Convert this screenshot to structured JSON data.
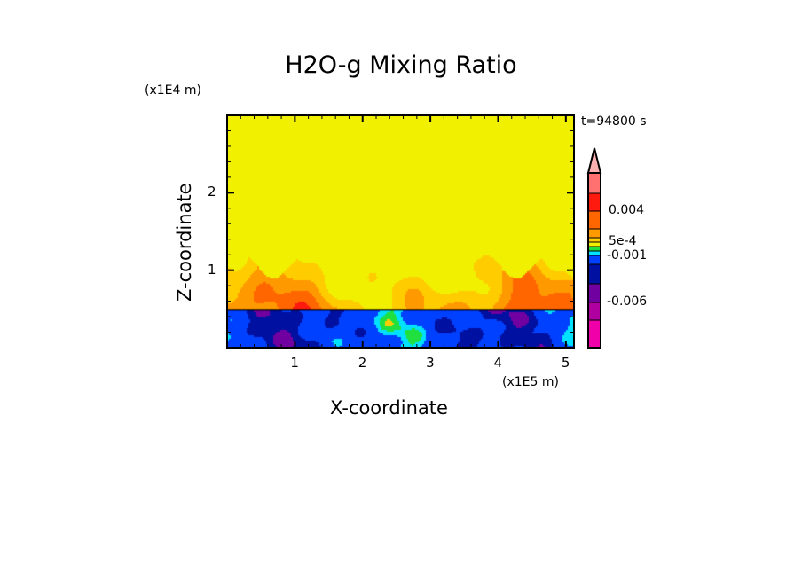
{
  "chart_data": {
    "type": "heatmap",
    "title": "H2O-g Mixing Ratio",
    "xlabel": "X-coordinate",
    "ylabel": "Z-coordinate",
    "x_unit": "(x1E5 m)",
    "y_unit": "(x1E4 m)",
    "annotation": "t=94800 s",
    "xlim": [
      0,
      5.12
    ],
    "ylim": [
      0,
      3.0
    ],
    "x_ticks": [
      "1",
      "2",
      "3",
      "4",
      "5"
    ],
    "x_tick_values": [
      1,
      2,
      3,
      4,
      5
    ],
    "y_ticks": [
      "1",
      "2"
    ],
    "y_tick_values": [
      1,
      2
    ],
    "interface_height": 0.5,
    "plume_top": 1.05,
    "colorbar": {
      "labels": [
        "0.004",
        "5e-4",
        "-0.001",
        "-0.006"
      ],
      "label_levels": [
        0.004,
        0.0005,
        -0.001,
        -0.006
      ],
      "colors": [
        "#ffb0b0",
        "#ff7070",
        "#ff1a10",
        "#ff6600",
        "#ff9900",
        "#ffcc00",
        "#f0f000",
        "#20e040",
        "#00e0ff",
        "#0040ff",
        "#0010a0",
        "#7000a0",
        "#b000a0",
        "#f000a8"
      ],
      "extend": "max"
    }
  }
}
